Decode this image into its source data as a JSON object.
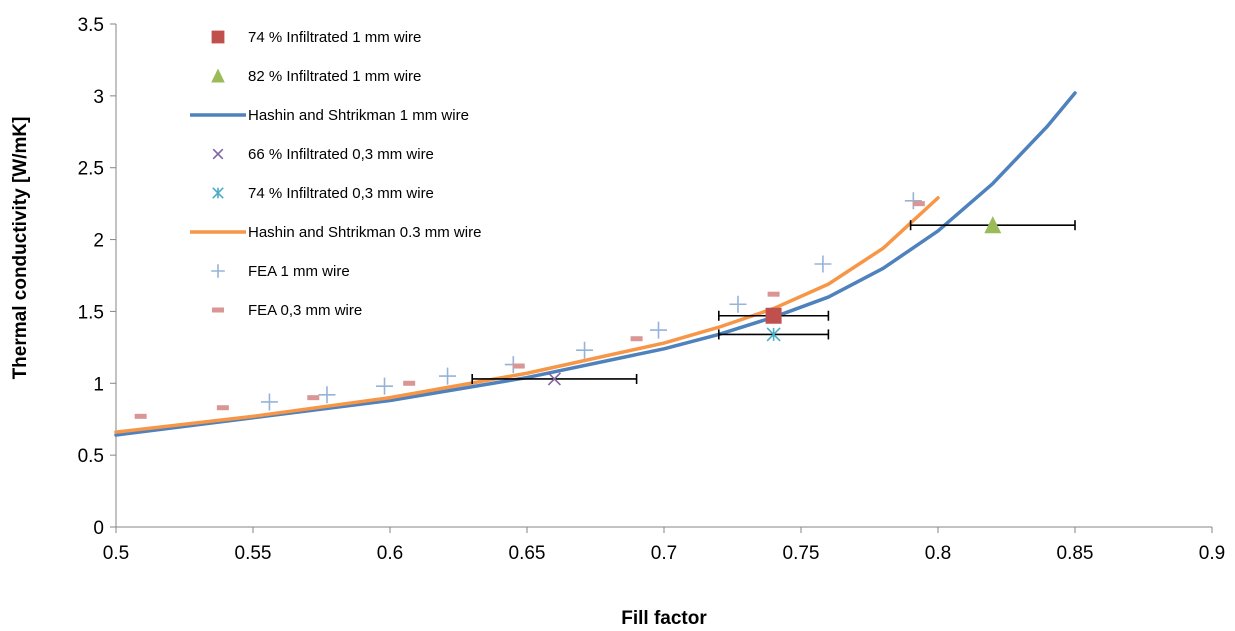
{
  "chart_data": {
    "type": "scatter",
    "xlabel": "Fill factor",
    "ylabel": "Thermal conductivity [W/mK]",
    "xlim": [
      0.5,
      0.9
    ],
    "ylim": [
      0,
      3.5
    ],
    "x_ticks": [
      "0.5",
      "0.55",
      "0.6",
      "0.65",
      "0.7",
      "0.75",
      "0.8",
      "0.85",
      "0.9"
    ],
    "y_ticks": [
      "0",
      "0.5",
      "1",
      "1.5",
      "2",
      "2.5",
      "3",
      "3.5"
    ],
    "grid": false,
    "legend_position": "top-left",
    "series": [
      {
        "name": "74 % Infiltrated 1 mm wire",
        "kind": "points",
        "marker": "square",
        "color": "#c0504d",
        "x": [
          0.74
        ],
        "y": [
          1.47
        ],
        "x_error_minus": [
          0.02
        ],
        "x_error_plus": [
          0.02
        ]
      },
      {
        "name": "82 % Infiltrated 1 mm wire",
        "kind": "points",
        "marker": "triangle",
        "color": "#9bbb59",
        "x": [
          0.82
        ],
        "y": [
          2.1
        ],
        "x_error_minus": [
          0.03
        ],
        "x_error_plus": [
          0.03
        ]
      },
      {
        "name": "Hashin and Shtrikman 1 mm wire",
        "kind": "line",
        "color": "#4f81bd",
        "x": [
          0.5,
          0.55,
          0.6,
          0.65,
          0.7,
          0.72,
          0.74,
          0.76,
          0.78,
          0.8,
          0.82,
          0.84,
          0.85
        ],
        "y": [
          0.64,
          0.76,
          0.88,
          1.04,
          1.24,
          1.34,
          1.46,
          1.6,
          1.8,
          2.06,
          2.39,
          2.79,
          3.02
        ]
      },
      {
        "name": "66 % Infiltrated 0,3 mm wire",
        "kind": "points",
        "marker": "x",
        "color": "#8064a2",
        "x": [
          0.66
        ],
        "y": [
          1.03
        ],
        "x_error_minus": [
          0.03
        ],
        "x_error_plus": [
          0.03
        ]
      },
      {
        "name": "74 % Infiltrated 0,3 mm wire",
        "kind": "points",
        "marker": "asterisk",
        "color": "#4bacc6",
        "x": [
          0.74
        ],
        "y": [
          1.34
        ],
        "x_error_minus": [
          0.02
        ],
        "x_error_plus": [
          0.02
        ]
      },
      {
        "name": "Hashin and Shtrikman 0.3 mm wire",
        "kind": "line",
        "color": "#f79646",
        "x": [
          0.5,
          0.55,
          0.6,
          0.65,
          0.7,
          0.72,
          0.74,
          0.76,
          0.78,
          0.8
        ],
        "y": [
          0.66,
          0.77,
          0.9,
          1.07,
          1.28,
          1.39,
          1.52,
          1.69,
          1.94,
          2.29
        ]
      },
      {
        "name": "FEA 1 mm wire",
        "kind": "points",
        "marker": "plus",
        "color": "#95b3d7",
        "x": [
          0.556,
          0.577,
          0.598,
          0.621,
          0.645,
          0.671,
          0.698,
          0.727,
          0.758,
          0.791
        ],
        "y": [
          0.87,
          0.92,
          0.98,
          1.05,
          1.13,
          1.23,
          1.37,
          1.55,
          1.83,
          2.27
        ]
      },
      {
        "name": "FEA 0,3 mm wire",
        "kind": "points",
        "marker": "dash",
        "color": "#d99694",
        "x": [
          0.509,
          0.539,
          0.572,
          0.607,
          0.647,
          0.69,
          0.74,
          0.793
        ],
        "y": [
          0.77,
          0.83,
          0.9,
          1.0,
          1.12,
          1.31,
          1.62,
          2.25
        ]
      }
    ]
  }
}
